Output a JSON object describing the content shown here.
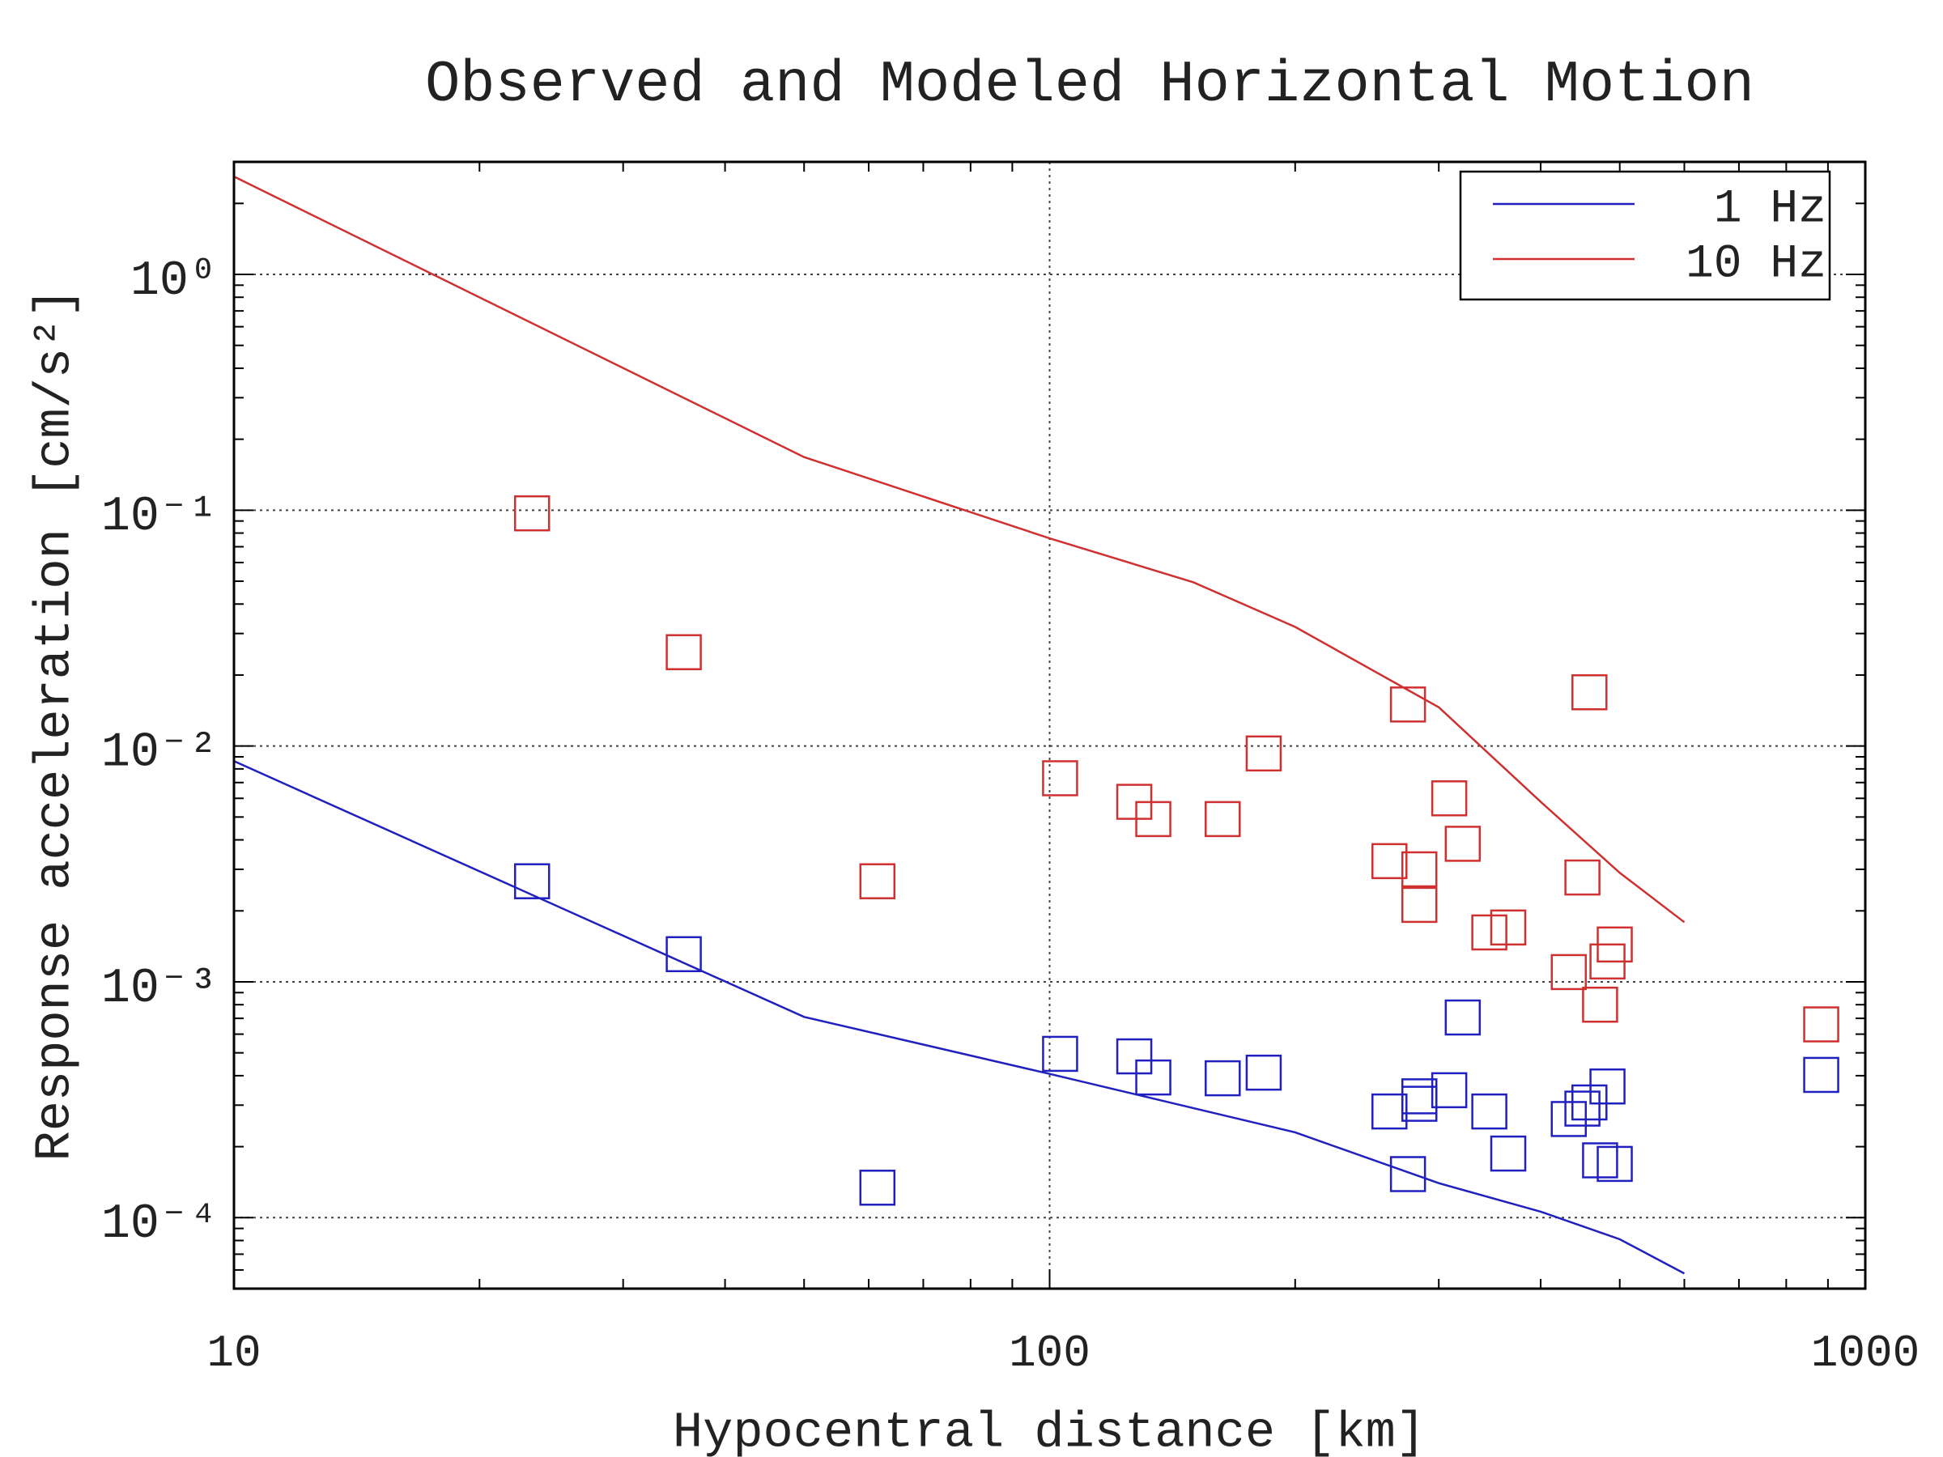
{
  "chart_data": {
    "type": "scatter",
    "title": "Observed and Modeled Horizontal Motion",
    "xlabel": "Hypocentral distance [km]",
    "ylabel": "Response acceleration [cm/s²]",
    "xscale": "log",
    "yscale": "log",
    "xlim": [
      10,
      1000
    ],
    "ylim": [
      5e-05,
      3
    ],
    "xticks": [
      10,
      100,
      1000
    ],
    "yticks": [
      {
        "value": 1,
        "label": "10⁰"
      },
      {
        "value": 0.1,
        "label": "10⁻¹"
      },
      {
        "value": 0.01,
        "label": "10⁻²"
      },
      {
        "value": 0.001,
        "label": "10⁻³"
      },
      {
        "value": 0.0001,
        "label": "10⁻⁴"
      }
    ],
    "grid": true,
    "minor_ticks": true,
    "legend": "upper right",
    "series": [
      {
        "name": "1 Hz",
        "color": "#2020c0",
        "x": [
          10,
          50,
          100,
          200,
          300,
          400,
          500,
          600
        ],
        "values": [
          0.00863,
          0.00071,
          0.000407,
          0.00023,
          0.00014,
          0.000106,
          8.1e-05,
          5.8e-05
        ],
        "observed": {
          "x": [
            23.2,
            35.6,
            61.5,
            103,
            127,
            134,
            163,
            183,
            261,
            275,
            284,
            284,
            309,
            321,
            346,
            365,
            433,
            450,
            459,
            473,
            483,
            493,
            883
          ],
          "values": [
            0.00267,
            0.00131,
            0.000134,
            0.000495,
            0.000483,
            0.000393,
            0.00039,
            0.000412,
            0.000282,
            0.000153,
            0.000304,
            0.000327,
            0.000347,
            0.000706,
            0.000282,
            0.000187,
            0.000262,
            0.00029,
            0.000308,
            0.000175,
            0.00036,
            0.000169,
            0.000403
          ]
        }
      },
      {
        "name": "10 Hz",
        "color": "#d03030",
        "x": [
          10,
          50,
          100,
          150,
          200,
          300,
          400,
          500,
          600
        ],
        "values": [
          2.6,
          0.168,
          0.076,
          0.0495,
          0.032,
          0.0146,
          0.0058,
          0.0029,
          0.00179
        ],
        "observed": {
          "x": [
            23.2,
            35.6,
            61.5,
            103,
            127,
            134,
            163,
            183,
            261,
            275,
            284,
            284,
            309,
            321,
            346,
            365,
            433,
            450,
            459,
            473,
            483,
            493,
            883
          ],
          "values": [
            0.097,
            0.025,
            0.00267,
            0.0073,
            0.0058,
            0.0049,
            0.0049,
            0.0093,
            0.00325,
            0.015,
            0.003,
            0.00212,
            0.006,
            0.00385,
            0.00162,
            0.0017,
            0.0011,
            0.00277,
            0.0169,
            0.0008,
            0.00122,
            0.00144,
            0.00066
          ]
        }
      }
    ]
  }
}
